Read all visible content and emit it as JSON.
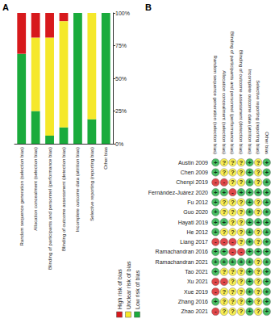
{
  "chart_data": [
    {
      "type": "bar",
      "title": "A",
      "stacked": true,
      "legend": "bottom",
      "categories": [
        "Random sequence generation (selection bias)",
        "Allocation concealment (selection bias)",
        "Blinding of participants and personnel (performance bias)",
        "Blinding of outcome assessment (detection bias)",
        "Incomplete outcome data (attrition bias)",
        "Selective reporting (reporting bias)",
        "Other bias"
      ],
      "series": [
        {
          "name": "Low risk of bias",
          "color": "#1aab3c",
          "values": [
            68.75,
            25,
            6.25,
            12.5,
            100,
            18.75,
            100
          ]
        },
        {
          "name": "Unclear risk of bias",
          "color": "#f5e82a",
          "values": [
            0,
            56.25,
            75,
            81.25,
            0,
            81.25,
            0
          ]
        },
        {
          "name": "High risk of bias",
          "color": "#d7191c",
          "values": [
            31.25,
            18.75,
            18.75,
            6.25,
            0,
            0,
            0
          ]
        }
      ],
      "ylim": [
        0,
        100
      ],
      "yticks": [
        {
          "value": 0,
          "label": "0%"
        },
        {
          "value": 25,
          "label": "25%"
        },
        {
          "value": 50,
          "label": "50%"
        },
        {
          "value": 75,
          "label": "75%"
        },
        {
          "value": 100,
          "label": "100%"
        }
      ]
    },
    {
      "type": "grid",
      "title": "B",
      "categories": [
        "Random sequence generation (selection bias)",
        "Allocation concealment (selection bias)",
        "Blinding of participants and personnel (performance bias)",
        "Blinding of outcome assessment (detection bias)",
        "Incomplete outcome data (attrition bias)",
        "Selective reporting (reporting bias)",
        "Other bias"
      ],
      "studies": [
        "Austin 2009",
        "Chen 2009",
        "Chenpi 2019",
        "Fernández-Juárez 2020",
        "Fu 2012",
        "Guo 2020",
        "Hayati 2019",
        "He 2012",
        "Liang 2017",
        "Ramachandran 2016",
        "Ramachandran 2021",
        "Tao 2021",
        "Xu 2021",
        "Xue 2019",
        "Zhang 2016",
        "Zhao 2021"
      ],
      "symbols": [
        "+",
        "?",
        "-"
      ],
      "cells": [
        [
          "+",
          "?",
          "?",
          "?",
          "+",
          "?",
          "+"
        ],
        [
          "+",
          "?",
          "?",
          "?",
          "+",
          "?",
          "+"
        ],
        [
          "-",
          "-",
          "?",
          "?",
          "+",
          "?",
          "+"
        ],
        [
          "+",
          "+",
          "-",
          "+",
          "+",
          "+",
          "+"
        ],
        [
          "+",
          "?",
          "?",
          "?",
          "+",
          "?",
          "+"
        ],
        [
          "+",
          "?",
          "?",
          "?",
          "+",
          "?",
          "+"
        ],
        [
          "+",
          "+",
          "?",
          "?",
          "+",
          "+",
          "+"
        ],
        [
          "+",
          "?",
          "?",
          "?",
          "+",
          "?",
          "+"
        ],
        [
          "-",
          "-",
          "-",
          "?",
          "+",
          "?",
          "+"
        ],
        [
          "+",
          "+",
          "-",
          "-",
          "+",
          "+",
          "+"
        ],
        [
          "+",
          "+",
          "+",
          "+",
          "+",
          "?",
          "+"
        ],
        [
          "+",
          "?",
          "?",
          "?",
          "+",
          "?",
          "+"
        ],
        [
          "-",
          "-",
          "?",
          "?",
          "+",
          "?",
          "+"
        ],
        [
          "-",
          "?",
          "?",
          "?",
          "+",
          "?",
          "+"
        ],
        [
          "+",
          "?",
          "?",
          "?",
          "+",
          "?",
          "+"
        ],
        [
          "-",
          "?",
          "?",
          "?",
          "+",
          "?",
          "+"
        ]
      ]
    }
  ]
}
